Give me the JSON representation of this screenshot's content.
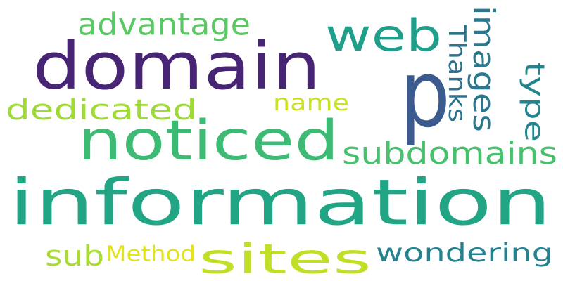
{
  "words": [
    {
      "text": "domain",
      "color": "#482475"
    },
    {
      "text": "information",
      "color": "#21a585"
    },
    {
      "text": "noticed",
      "color": "#3dbb74"
    },
    {
      "text": "sites",
      "color": "#c0df25"
    },
    {
      "text": "web",
      "color": "#1f9e89"
    },
    {
      "text": "p",
      "color": "#3b5a8e"
    },
    {
      "text": "advantage",
      "color": "#5ac864"
    },
    {
      "text": "dedicated",
      "color": "#a0da39"
    },
    {
      "text": "name",
      "color": "#cae11f"
    },
    {
      "text": "subdomains",
      "color": "#48c16e"
    },
    {
      "text": "wondering",
      "color": "#26818e"
    },
    {
      "text": "sub",
      "color": "#a8db34"
    },
    {
      "text": "Method",
      "color": "#e2e418"
    },
    {
      "text": "images",
      "color": "#2a788e"
    },
    {
      "text": "Thanks",
      "color": "#2c728e"
    },
    {
      "text": "type",
      "color": "#25858e"
    }
  ]
}
